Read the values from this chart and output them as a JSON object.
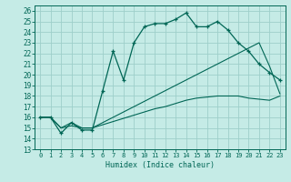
{
  "title": "",
  "xlabel": "Humidex (Indice chaleur)",
  "bg_color": "#c5ebe6",
  "grid_color": "#9ecfca",
  "line_color": "#006655",
  "xlim": [
    -0.5,
    23.5
  ],
  "ylim": [
    13,
    26.5
  ],
  "xticks": [
    0,
    1,
    2,
    3,
    4,
    5,
    6,
    7,
    8,
    9,
    10,
    11,
    12,
    13,
    14,
    15,
    16,
    17,
    18,
    19,
    20,
    21,
    22,
    23
  ],
  "yticks": [
    13,
    14,
    15,
    16,
    17,
    18,
    19,
    20,
    21,
    22,
    23,
    24,
    25,
    26
  ],
  "line1_x": [
    0,
    1,
    2,
    3,
    4,
    5,
    6,
    7,
    8,
    9,
    10,
    11,
    12,
    13,
    14,
    15,
    16,
    17,
    18,
    19,
    20,
    21,
    22,
    23
  ],
  "line1_y": [
    16,
    16,
    14.5,
    15.5,
    14.8,
    14.8,
    18.5,
    22.2,
    19.5,
    23,
    24.5,
    24.8,
    24.8,
    25.2,
    25.8,
    24.5,
    24.5,
    25.0,
    24.2,
    23.0,
    22.2,
    21.0,
    20.2,
    19.5
  ],
  "line2_x": [
    0,
    1,
    2,
    3,
    4,
    5,
    6,
    7,
    8,
    9,
    10,
    11,
    12,
    13,
    14,
    15,
    16,
    17,
    18,
    19,
    20,
    21,
    22,
    23
  ],
  "line2_y": [
    16,
    16,
    15.0,
    15.5,
    15.0,
    15.0,
    15.3,
    15.6,
    15.9,
    16.2,
    16.5,
    16.8,
    17.0,
    17.3,
    17.6,
    17.8,
    17.9,
    18.0,
    18.0,
    18.0,
    17.8,
    17.7,
    17.6,
    18.0
  ],
  "line3_x": [
    0,
    1,
    2,
    3,
    4,
    5,
    6,
    7,
    8,
    9,
    10,
    11,
    12,
    13,
    14,
    15,
    16,
    17,
    18,
    19,
    20,
    21,
    22,
    23
  ],
  "line3_y": [
    16,
    16,
    15.0,
    15.2,
    15.0,
    15.0,
    15.5,
    16.0,
    16.5,
    17.0,
    17.5,
    18.0,
    18.5,
    19.0,
    19.5,
    20.0,
    20.5,
    21.0,
    21.5,
    22.0,
    22.5,
    23.0,
    20.8,
    18.2
  ]
}
